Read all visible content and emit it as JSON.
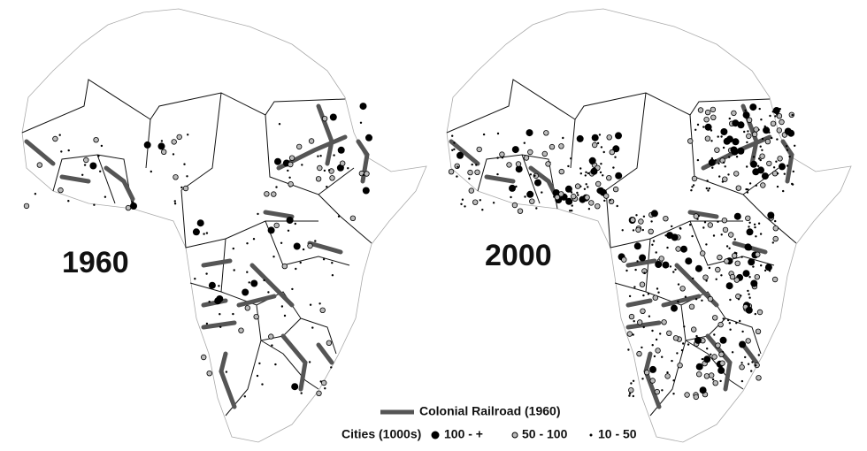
{
  "maps": [
    {
      "label": "1960"
    },
    {
      "label": "2000"
    }
  ],
  "legend": {
    "railroad": "Colonial Railroad (1960)",
    "cities_title": "Cities (1000s)",
    "sizes": [
      "100 - +",
      "50 - 100",
      "10 - 50"
    ]
  }
}
